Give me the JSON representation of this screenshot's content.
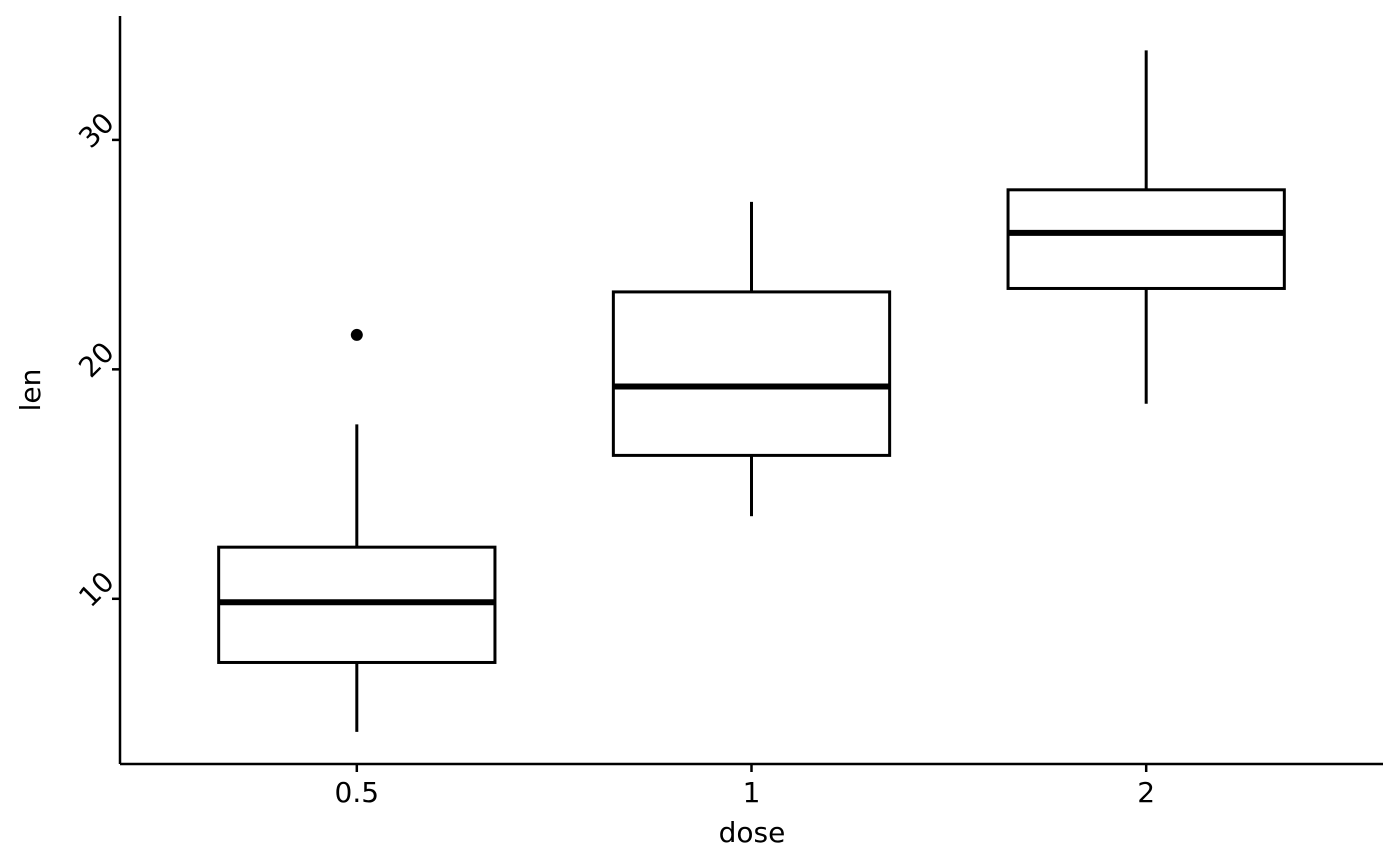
{
  "chart_data": {
    "type": "boxplot",
    "x_label": "dose",
    "y_label": "len",
    "categories": [
      "0.5",
      "1",
      "2"
    ],
    "boxes": [
      {
        "min": 4.2,
        "q1": 7.225,
        "median": 9.85,
        "q3": 12.25,
        "max": 17.6,
        "outliers": [
          21.5
        ]
      },
      {
        "min": 13.6,
        "q1": 16.25,
        "median": 19.25,
        "q3": 23.375,
        "max": 27.3,
        "outliers": []
      },
      {
        "min": 18.5,
        "q1": 23.525,
        "median": 25.95,
        "q3": 27.825,
        "max": 33.9,
        "outliers": []
      }
    ],
    "color": "#000000",
    "ylim": [
      2.8,
      35.4
    ],
    "yticks": [
      10,
      20,
      30
    ]
  }
}
